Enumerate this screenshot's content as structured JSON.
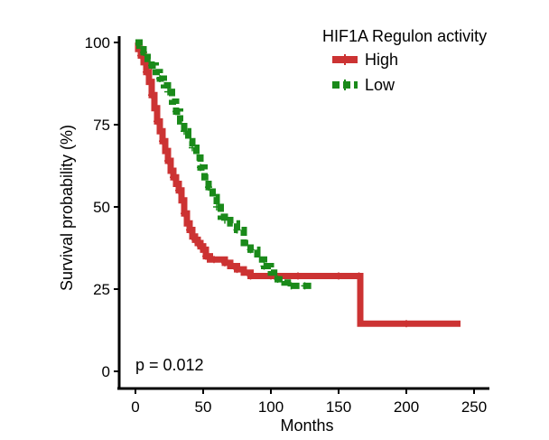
{
  "chart_data": {
    "type": "line",
    "title": "",
    "xlabel": "Months",
    "ylabel": "Survival probability (%)",
    "xlim": [
      -10,
      260
    ],
    "ylim": [
      -7,
      104
    ],
    "xticks": [
      0,
      50,
      100,
      150,
      200,
      250
    ],
    "yticks": [
      0,
      25,
      50,
      75,
      100
    ],
    "legend": {
      "title": "HIF1A Regulon activity",
      "position": "top-right"
    },
    "annotation": "p = 0.012",
    "series": [
      {
        "name": "High",
        "color": "#cc3333",
        "x": [
          0,
          2,
          4,
          6,
          8,
          10,
          12,
          14,
          16,
          18,
          20,
          22,
          24,
          26,
          28,
          30,
          32,
          34,
          36,
          38,
          40,
          42,
          44,
          46,
          48,
          50,
          52,
          55,
          58,
          62,
          66,
          70,
          75,
          80,
          85,
          90,
          100,
          110,
          120,
          140,
          150,
          160,
          165,
          166,
          200,
          240
        ],
        "y": [
          100,
          98,
          96,
          94,
          91,
          88,
          84,
          80,
          76,
          73,
          70,
          67,
          64,
          61,
          59,
          57,
          55,
          52,
          48,
          45,
          43,
          41,
          40,
          39,
          38,
          37,
          35,
          34,
          34,
          34,
          33,
          32,
          31,
          30,
          29,
          29,
          29,
          29,
          29,
          29,
          29,
          29,
          29,
          14.5,
          14.5,
          14.5
        ]
      },
      {
        "name": "Low",
        "color": "#1a8a1a",
        "x": [
          0,
          3,
          6,
          9,
          12,
          15,
          18,
          21,
          24,
          27,
          30,
          33,
          36,
          39,
          42,
          45,
          48,
          51,
          54,
          57,
          60,
          63,
          66,
          70,
          75,
          80,
          85,
          90,
          95,
          100,
          105,
          110,
          115,
          120,
          125,
          130
        ],
        "y": [
          100,
          99,
          97,
          95,
          93,
          91,
          89,
          87,
          85,
          82,
          79,
          76,
          73,
          70,
          68,
          65,
          62,
          59,
          56,
          53,
          50,
          47,
          46,
          45,
          43,
          39,
          37,
          34,
          32,
          30,
          28,
          27,
          26,
          26,
          26,
          26
        ]
      }
    ]
  }
}
